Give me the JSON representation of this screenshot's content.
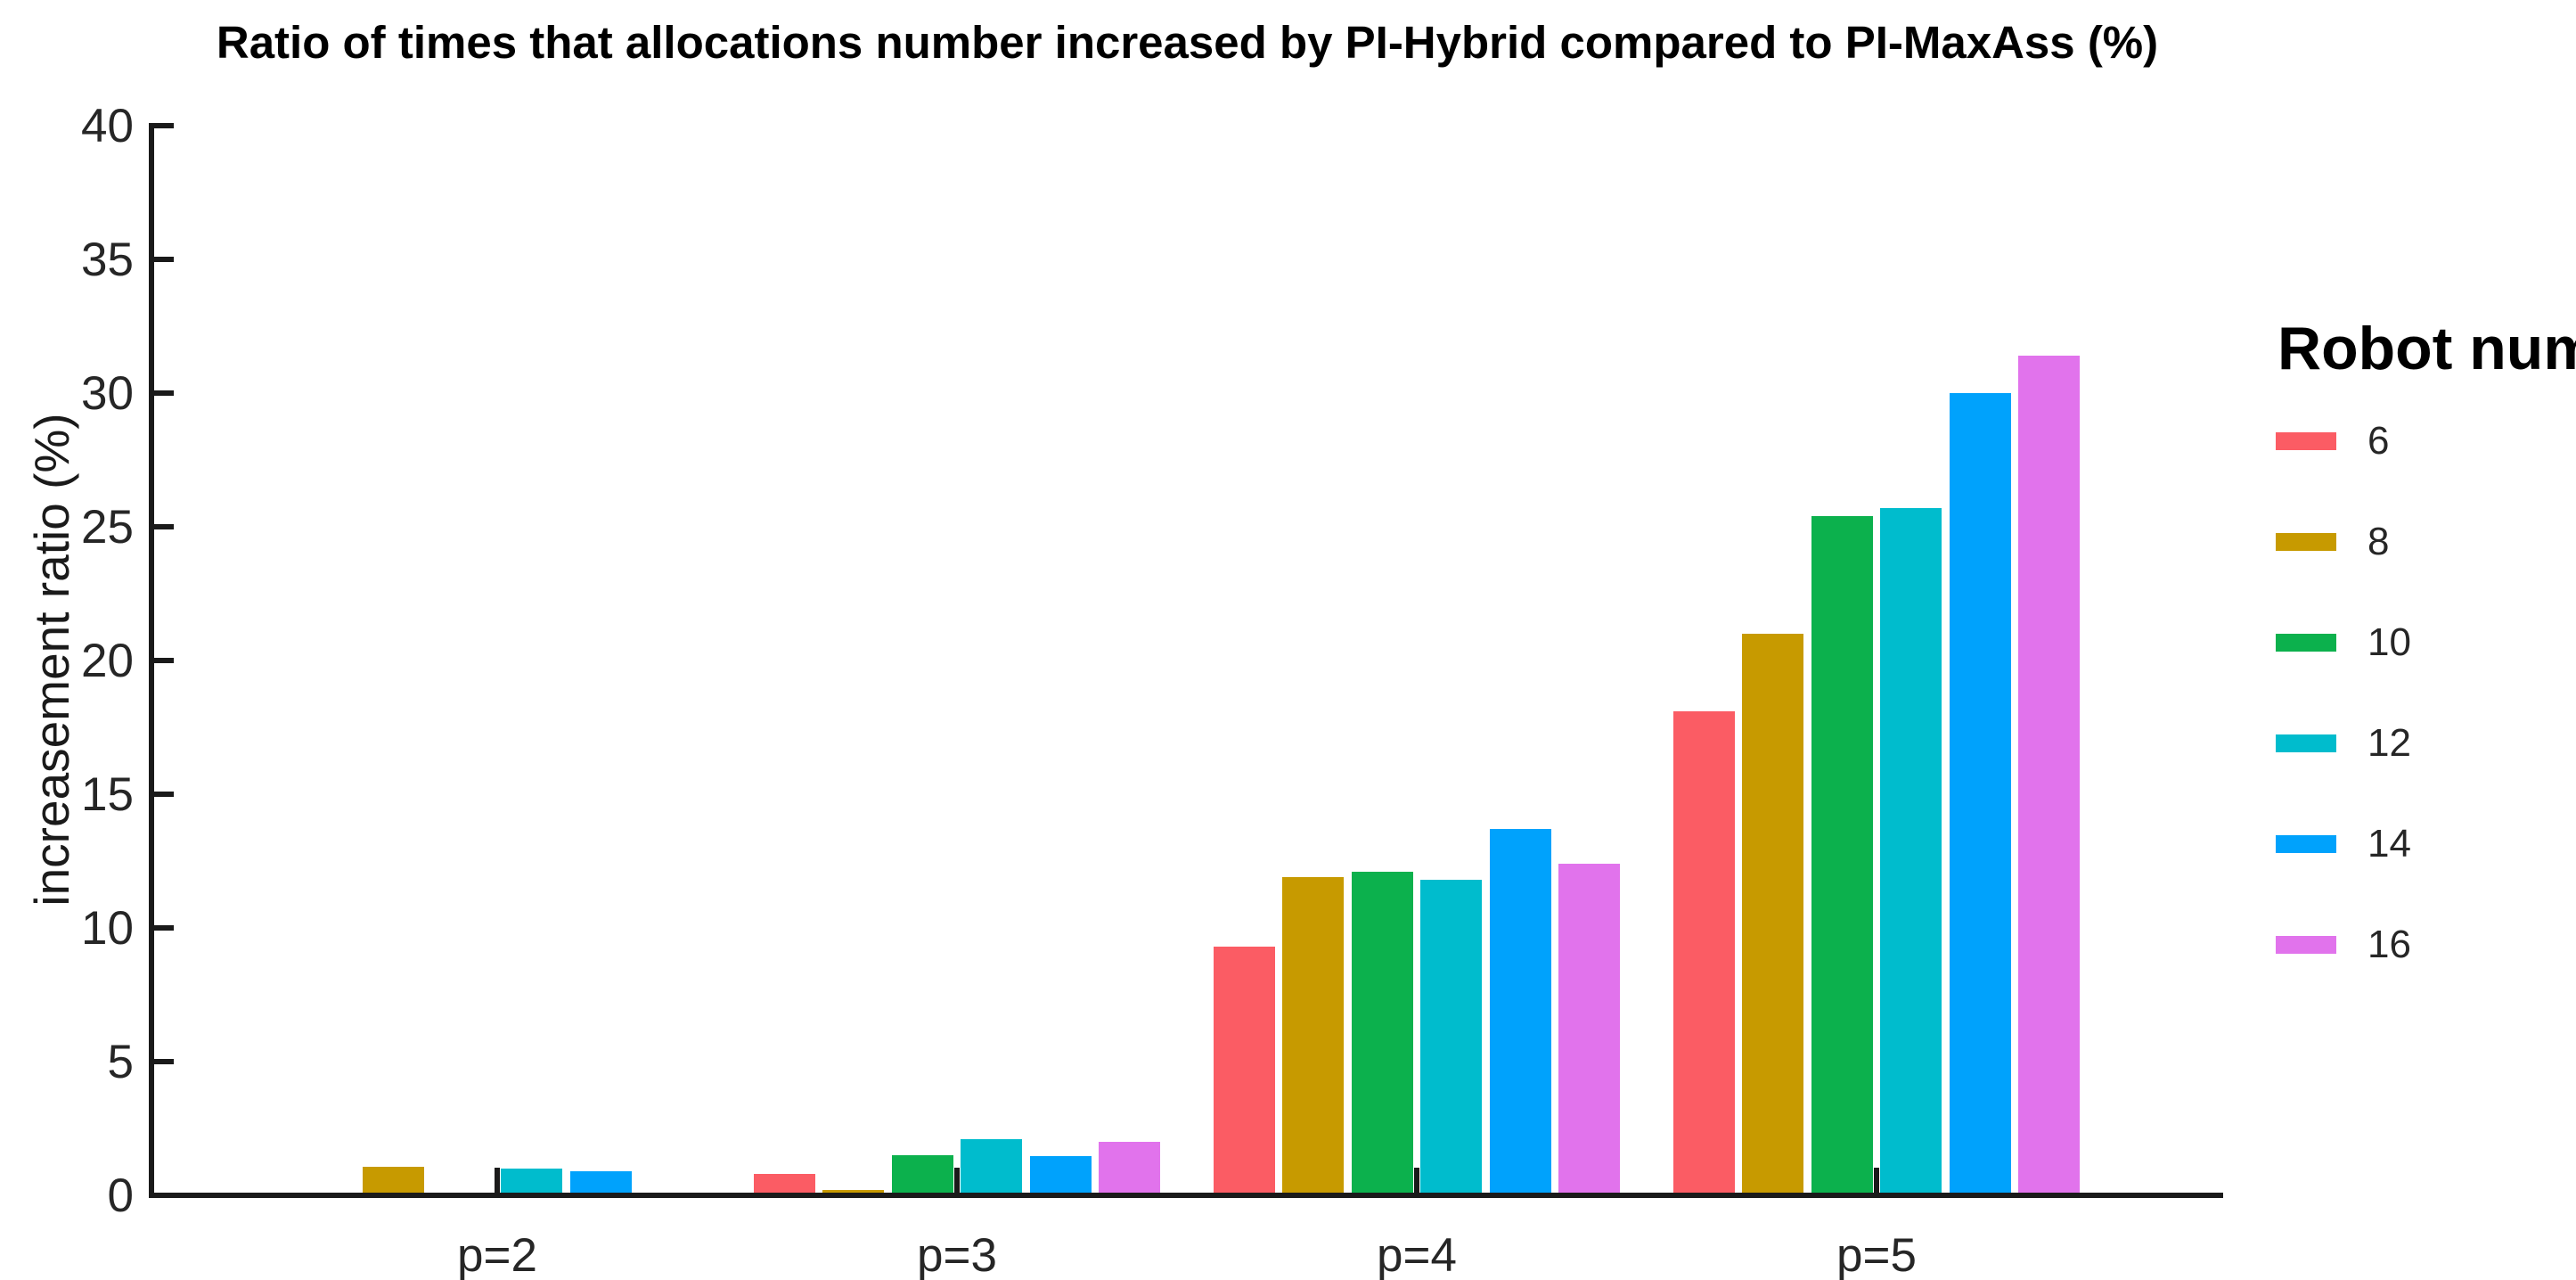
{
  "title": "Ratio of times that allocations number increased by PI-Hybrid compared to PI-MaxAss (%)",
  "chart_data": {
    "type": "bar",
    "title": "Ratio of times that allocations number increased by PI-Hybrid compared to PI-MaxAss (%)",
    "xlabel": "",
    "ylabel": "increasement ratio (%)",
    "categories": [
      "p=2",
      "p=3",
      "p=4",
      "p=5"
    ],
    "series": [
      {
        "name": "6",
        "color": "#FB5C64",
        "values": [
          0,
          0.8,
          9.3,
          18.1
        ]
      },
      {
        "name": "8",
        "color": "#C79A00",
        "values": [
          1.05,
          0.2,
          11.9,
          21.0
        ]
      },
      {
        "name": "10",
        "color": "#0CB14D",
        "values": [
          0,
          1.5,
          12.1,
          25.4
        ]
      },
      {
        "name": "12",
        "color": "#00BCCD",
        "values": [
          1.0,
          2.1,
          11.8,
          25.7
        ]
      },
      {
        "name": "14",
        "color": "#00A2FC",
        "values": [
          0.9,
          1.45,
          13.7,
          30.0
        ]
      },
      {
        "name": "16",
        "color": "#E173EC",
        "values": [
          0,
          2.0,
          12.4,
          31.4
        ]
      }
    ],
    "ylim": [
      0,
      40
    ],
    "yticks": [
      0,
      5,
      10,
      15,
      20,
      25,
      30,
      35,
      40
    ],
    "legend_title": "Robot num",
    "legend_position": "right-outside",
    "grid": false,
    "axis_color": "#1a1a1a",
    "tick_direction": "in"
  }
}
